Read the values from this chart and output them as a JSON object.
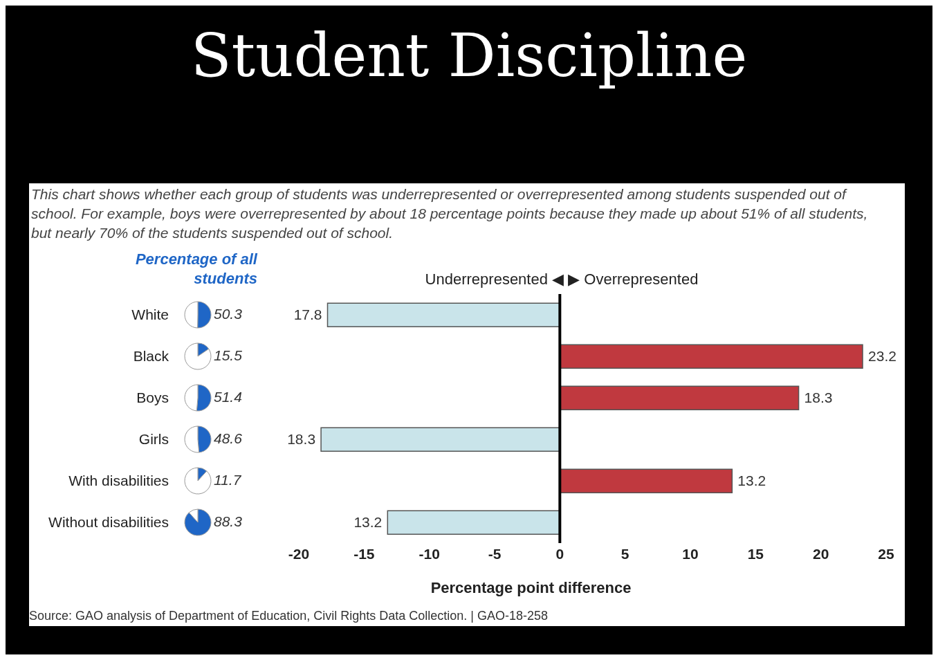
{
  "chart_data": [
    {
      "type": "bar",
      "orientation": "horizontal",
      "title": "Student Discipline",
      "subtitle": "This chart shows whether each group of students was underrepresented or overrepresented among students suspended out of school. For example, boys were overrepresented by about 18 percentage points because they made up about 51% of all students, but nearly 70% of the students suspended out of school.",
      "xlabel": "Percentage point difference",
      "categories": [
        "White",
        "Black",
        "Boys",
        "Girls",
        "With disabilities",
        "Without disabilities"
      ],
      "values": [
        17.8,
        23.2,
        18.3,
        18.3,
        13.2,
        13.2
      ],
      "base": [
        -17.8,
        0,
        0,
        -18.3,
        0,
        -13.2
      ],
      "colors": [
        "#c9e4ea",
        "#c0393f",
        "#c0393f",
        "#c9e4ea",
        "#c0393f",
        "#c9e4ea"
      ],
      "data_labels": true,
      "xlim": [
        -20,
        25
      ],
      "xticks": [
        -20,
        -15,
        -10,
        -5,
        0,
        5,
        10,
        15,
        20,
        25
      ],
      "grid": false,
      "legend": false,
      "ref_lines": [
        {
          "axis": "x",
          "value": 0,
          "color": "#000000"
        }
      ],
      "annotations": [
        "Underrepresented ◀ ▶ Overrepresented",
        "Percentage of all students",
        "Source: GAO analysis of Department of Education, Civil Rights Data Collection.  |  GAO-18-258"
      ]
    },
    {
      "type": "pie",
      "categories": [
        null,
        null
      ],
      "values": [
        50.3,
        49.7
      ],
      "colors": [
        "#1f66c6",
        "#ffffff"
      ],
      "value_labels": [
        "50.3",
        null
      ]
    },
    {
      "type": "pie",
      "categories": [
        null,
        null
      ],
      "values": [
        15.5,
        84.5
      ],
      "colors": [
        "#1f66c6",
        "#ffffff"
      ],
      "value_labels": [
        "15.5",
        null
      ]
    },
    {
      "type": "pie",
      "categories": [
        null,
        null
      ],
      "values": [
        51.4,
        48.6
      ],
      "colors": [
        "#1f66c6",
        "#ffffff"
      ],
      "value_labels": [
        "51.4",
        null
      ]
    },
    {
      "type": "pie",
      "categories": [
        null,
        null
      ],
      "values": [
        48.6,
        51.4
      ],
      "colors": [
        "#1f66c6",
        "#ffffff"
      ],
      "value_labels": [
        "48.6",
        null
      ]
    },
    {
      "type": "pie",
      "categories": [
        null,
        null
      ],
      "values": [
        11.7,
        88.3
      ],
      "colors": [
        "#1f66c6",
        "#ffffff"
      ],
      "value_labels": [
        "11.7",
        null
      ]
    },
    {
      "type": "pie",
      "categories": [
        null,
        null
      ],
      "values": [
        88.3,
        11.7
      ],
      "colors": [
        "#1f66c6",
        "#ffffff"
      ],
      "value_labels": [
        "88.3",
        null
      ]
    }
  ]
}
